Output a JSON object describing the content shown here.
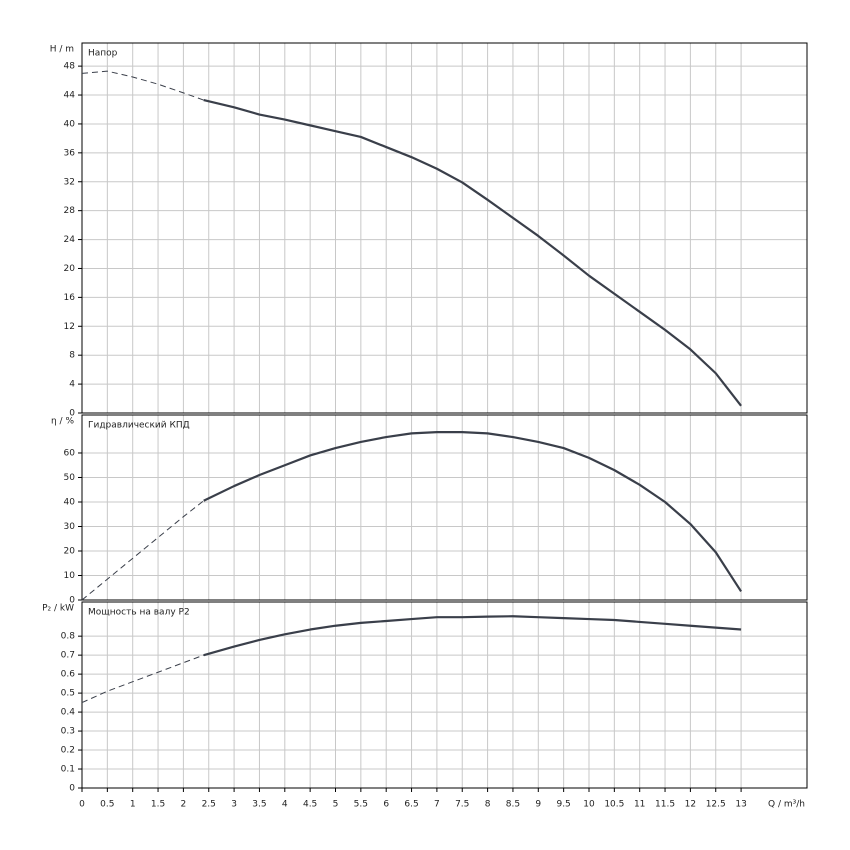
{
  "chart_data": [
    {
      "type": "line",
      "title": "Напор",
      "ylabel": "H / m",
      "xlim": [
        0,
        14.3
      ],
      "xticks": [
        0,
        0.5,
        1,
        1.5,
        2,
        2.5,
        3,
        3.5,
        4,
        4.5,
        5,
        5.5,
        6,
        6.5,
        7,
        7.5,
        8,
        8.5,
        9,
        9.5,
        10,
        10.5,
        11,
        11.5,
        12,
        12.5,
        13
      ],
      "ylim": [
        0,
        51.2
      ],
      "yticks": [
        0,
        4,
        8,
        12,
        16,
        20,
        24,
        28,
        32,
        36,
        40,
        44,
        48
      ],
      "grid": true,
      "series": [
        {
          "line_style": "dashed",
          "color": "#3a3f4a",
          "x": [
            0,
            0.5,
            1,
            1.5,
            2,
            2.4
          ],
          "values": [
            47,
            47.3,
            46.5,
            45.5,
            44.3,
            43.3
          ]
        },
        {
          "line_style": "solid",
          "color": "#3a3f4a",
          "x": [
            2.4,
            3,
            3.5,
            4,
            4.5,
            5,
            5.5,
            6,
            6.5,
            7,
            7.5,
            8,
            8.5,
            9,
            9.5,
            10,
            10.5,
            11,
            11.5,
            12,
            12.5,
            13
          ],
          "values": [
            43.3,
            42.3,
            41.3,
            40.6,
            39.8,
            39,
            38.2,
            36.8,
            35.4,
            33.8,
            31.9,
            29.5,
            27,
            24.5,
            21.8,
            19,
            16.5,
            14,
            11.5,
            8.8,
            5.5,
            1
          ]
        }
      ]
    },
    {
      "type": "line",
      "title": "Гидравлический КПД",
      "ylabel": "η / %",
      "xlim": [
        0,
        14.3
      ],
      "xticks": [
        0,
        0.5,
        1,
        1.5,
        2,
        2.5,
        3,
        3.5,
        4,
        4.5,
        5,
        5.5,
        6,
        6.5,
        7,
        7.5,
        8,
        8.5,
        9,
        9.5,
        10,
        10.5,
        11,
        11.5,
        12,
        12.5,
        13
      ],
      "ylim": [
        0,
        75.5
      ],
      "yticks": [
        0,
        10,
        20,
        30,
        40,
        50,
        60
      ],
      "grid": true,
      "series": [
        {
          "line_style": "dashed",
          "color": "#3a3f4a",
          "x": [
            0,
            1,
            2,
            2.4
          ],
          "values": [
            0,
            17,
            34,
            40.5
          ]
        },
        {
          "line_style": "solid",
          "color": "#3a3f4a",
          "x": [
            2.4,
            3,
            3.5,
            4,
            4.5,
            5,
            5.5,
            6,
            6.5,
            7,
            7.5,
            8,
            8.5,
            9,
            9.5,
            10,
            10.5,
            11,
            11.5,
            12,
            12.5,
            13
          ],
          "values": [
            40.5,
            46.5,
            51,
            55,
            59,
            62,
            64.5,
            66.5,
            68,
            68.5,
            68.5,
            68,
            66.5,
            64.5,
            62,
            58,
            53,
            47,
            40,
            31,
            19.5,
            3.5
          ]
        }
      ]
    },
    {
      "type": "line",
      "title": "Мощность на валу P2",
      "ylabel": "P₂ / kW",
      "xlabel": "Q / m³/h",
      "xlim": [
        0,
        14.3
      ],
      "xticks": [
        0,
        0.5,
        1,
        1.5,
        2,
        2.5,
        3,
        3.5,
        4,
        4.5,
        5,
        5.5,
        6,
        6.5,
        7,
        7.5,
        8,
        8.5,
        9,
        9.5,
        10,
        10.5,
        11,
        11.5,
        12,
        12.5,
        13
      ],
      "ylim": [
        0,
        0.98
      ],
      "yticks": [
        0,
        0.1,
        0.2,
        0.3,
        0.4,
        0.5,
        0.6,
        0.7,
        0.8
      ],
      "grid": true,
      "series": [
        {
          "line_style": "dashed",
          "color": "#3a3f4a",
          "x": [
            0,
            0.5,
            1,
            1.5,
            2,
            2.4
          ],
          "values": [
            0.45,
            0.51,
            0.56,
            0.61,
            0.66,
            0.7
          ]
        },
        {
          "line_style": "solid",
          "color": "#3a3f4a",
          "x": [
            2.4,
            3,
            3.5,
            4,
            4.5,
            5,
            5.5,
            6,
            6.5,
            7,
            7.5,
            8,
            8.5,
            9,
            9.5,
            10,
            10.5,
            11,
            11.5,
            12,
            12.5,
            13
          ],
          "values": [
            0.7,
            0.745,
            0.78,
            0.81,
            0.835,
            0.855,
            0.87,
            0.88,
            0.89,
            0.9,
            0.9,
            0.903,
            0.905,
            0.9,
            0.895,
            0.89,
            0.885,
            0.875,
            0.865,
            0.855,
            0.845,
            0.835
          ]
        }
      ]
    }
  ]
}
